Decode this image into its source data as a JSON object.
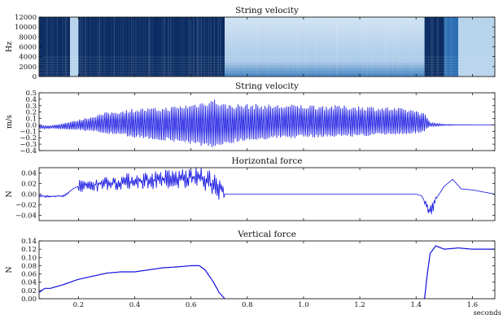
{
  "colors": {
    "signal": "#1010e0",
    "spec_dark": "#0a2c63",
    "spec_mid": "#2c6fb4",
    "spec_light": "#b8d4ec"
  },
  "chart_data": [
    {
      "type": "heatmap",
      "title": "String velocity",
      "ylabel": "Hz",
      "ylim": [
        0,
        12000
      ],
      "yticks": [
        0,
        2000,
        4000,
        6000,
        8000,
        10000,
        12000
      ],
      "yticklabels": [
        "0",
        "2000",
        "4000",
        "6000",
        "8000",
        "10000",
        "12000"
      ],
      "xlim": [
        0.06,
        1.68
      ],
      "regions": [
        {
          "t": [
            0.06,
            0.17
          ],
          "level": "dark"
        },
        {
          "t": [
            0.17,
            0.2
          ],
          "level": "light"
        },
        {
          "t": [
            0.2,
            0.72
          ],
          "level": "dark"
        },
        {
          "t": [
            0.72,
            1.43
          ],
          "level": "fading"
        },
        {
          "t": [
            1.43,
            1.5
          ],
          "level": "dark"
        },
        {
          "t": [
            1.5,
            1.55
          ],
          "level": "mid"
        },
        {
          "t": [
            1.55,
            1.68
          ],
          "level": "light"
        }
      ]
    },
    {
      "type": "line",
      "title": "String velocity",
      "ylabel": "m/s",
      "ylim": [
        -0.4,
        0.5
      ],
      "yticks": [
        -0.4,
        -0.3,
        -0.2,
        -0.1,
        0.0,
        0.1,
        0.2,
        0.3,
        0.4,
        0.5
      ],
      "yticklabels": [
        "−0.4",
        "−0.3",
        "−0.2",
        "−0.1",
        "0.0",
        "0.1",
        "0.2",
        "0.3",
        "0.4",
        "0.5"
      ],
      "xlim": [
        0.06,
        1.68
      ],
      "series": [
        {
          "x": [
            0.06,
            0.1,
            0.2,
            0.3,
            0.4,
            0.5,
            0.6,
            0.65,
            0.68,
            0.72,
            0.8,
            0.9,
            1.0,
            1.1,
            1.2,
            1.3,
            1.4,
            1.43,
            1.45,
            1.5,
            1.6,
            1.68
          ],
          "envelope_max": [
            -0.01,
            -0.02,
            0.08,
            0.2,
            0.26,
            0.27,
            0.33,
            0.38,
            0.42,
            0.33,
            0.33,
            0.32,
            0.32,
            0.31,
            0.3,
            0.28,
            0.24,
            0.18,
            0.04,
            0.01,
            0.0,
            0.0
          ],
          "envelope_min": [
            -0.06,
            -0.06,
            -0.08,
            -0.14,
            -0.2,
            -0.25,
            -0.3,
            -0.35,
            -0.42,
            -0.3,
            -0.25,
            -0.22,
            -0.2,
            -0.19,
            -0.18,
            -0.16,
            -0.14,
            -0.1,
            -0.03,
            -0.01,
            0.0,
            0.0
          ]
        }
      ]
    },
    {
      "type": "line",
      "title": "Horizontal force",
      "ylabel": "N",
      "ylim": [
        -0.05,
        0.05
      ],
      "yticks": [
        -0.04,
        -0.02,
        0.0,
        0.02,
        0.04
      ],
      "yticklabels": [
        "−0.04",
        "−0.02",
        "0.00",
        "0.02",
        "0.04"
      ],
      "xlim": [
        0.06,
        1.68
      ],
      "series": [
        {
          "x": [
            0.06,
            0.1,
            0.15,
            0.18,
            0.2,
            0.3,
            0.4,
            0.5,
            0.6,
            0.65,
            0.7,
            0.72,
            1.0,
            1.4,
            1.42,
            1.45,
            1.47,
            1.5,
            1.53,
            1.56,
            1.6,
            1.65,
            1.68
          ],
          "y": [
            -0.003,
            -0.005,
            -0.003,
            0.01,
            0.015,
            0.02,
            0.025,
            0.028,
            0.03,
            0.028,
            0.01,
            0.0,
            0.0,
            0.0,
            -0.003,
            -0.035,
            -0.01,
            0.015,
            0.028,
            0.01,
            0.008,
            0.003,
            0.0
          ]
        }
      ]
    },
    {
      "type": "line",
      "title": "Vertical force",
      "ylabel": "N",
      "xlabel": "seconds",
      "ylim": [
        0.0,
        0.14
      ],
      "yticks": [
        0.0,
        0.02,
        0.04,
        0.06,
        0.08,
        0.1,
        0.12,
        0.14
      ],
      "yticklabels": [
        "0.00",
        "0.02",
        "0.04",
        "0.06",
        "0.08",
        "0.10",
        "0.12",
        "0.14"
      ],
      "xlim": [
        0.06,
        1.68
      ],
      "xticks": [
        0.2,
        0.4,
        0.6,
        0.8,
        1.0,
        1.2,
        1.4,
        1.6
      ],
      "xticklabels": [
        "0.2",
        "0.4",
        "0.6",
        "0.8",
        "1.0",
        "1.2",
        "1.4",
        "1.6"
      ],
      "series": [
        {
          "x": [
            0.06,
            0.08,
            0.1,
            0.15,
            0.2,
            0.3,
            0.35,
            0.4,
            0.45,
            0.5,
            0.55,
            0.6,
            0.63,
            0.65,
            0.68,
            0.7,
            0.72
          ],
          "y": [
            0.015,
            0.025,
            0.025,
            0.035,
            0.047,
            0.062,
            0.065,
            0.065,
            0.07,
            0.075,
            0.077,
            0.08,
            0.08,
            0.07,
            0.04,
            0.015,
            0.0
          ]
        },
        {
          "x": [
            1.43,
            1.44,
            1.45,
            1.47,
            1.5,
            1.55,
            1.6,
            1.65,
            1.68
          ],
          "y": [
            0.0,
            0.06,
            0.11,
            0.128,
            0.12,
            0.123,
            0.12,
            0.12,
            0.12
          ]
        }
      ]
    }
  ]
}
